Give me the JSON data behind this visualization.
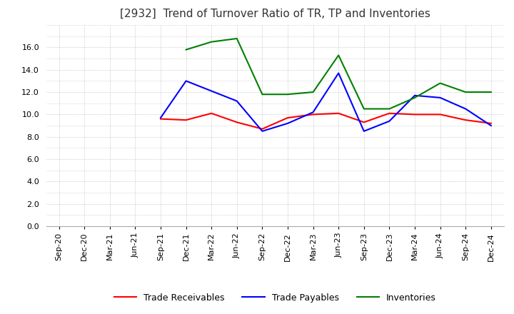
{
  "title": "[2932]  Trend of Turnover Ratio of TR, TP and Inventories",
  "ylim": [
    0.0,
    18.0
  ],
  "yticks": [
    0.0,
    2.0,
    4.0,
    6.0,
    8.0,
    10.0,
    12.0,
    14.0,
    16.0
  ],
  "ytick_labels": [
    "0.0",
    "2.0",
    "4.0",
    "6.0",
    "8.0",
    "10.0",
    "12.0",
    "14.0",
    "16.0"
  ],
  "x_labels": [
    "Sep-20",
    "Dec-20",
    "Mar-21",
    "Jun-21",
    "Sep-21",
    "Dec-21",
    "Mar-22",
    "Jun-22",
    "Sep-22",
    "Dec-22",
    "Mar-23",
    "Jun-23",
    "Sep-23",
    "Dec-23",
    "Mar-24",
    "Jun-24",
    "Sep-24",
    "Dec-24"
  ],
  "trade_receivables": [
    null,
    null,
    null,
    null,
    9.6,
    9.5,
    10.1,
    9.3,
    8.7,
    9.7,
    10.0,
    10.1,
    9.3,
    10.1,
    10.0,
    10.0,
    9.5,
    9.2
  ],
  "trade_payables": [
    null,
    null,
    null,
    null,
    9.7,
    13.0,
    12.1,
    11.2,
    8.5,
    9.2,
    10.2,
    13.7,
    8.5,
    9.4,
    11.7,
    11.5,
    10.5,
    9.0
  ],
  "inventories": [
    null,
    null,
    null,
    null,
    null,
    15.8,
    16.5,
    16.8,
    11.8,
    11.8,
    12.0,
    15.3,
    10.5,
    10.5,
    11.5,
    12.8,
    12.0,
    12.0
  ],
  "tr_color": "#ff0000",
  "tp_color": "#0000ff",
  "inv_color": "#008000",
  "line_width": 1.5,
  "background_color": "#ffffff",
  "grid_color": "#aaaaaa",
  "title_fontsize": 11,
  "tick_fontsize": 8,
  "legend_fontsize": 9
}
